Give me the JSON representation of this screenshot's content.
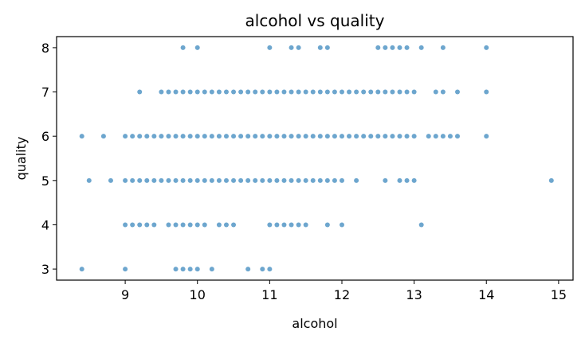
{
  "chart_data": {
    "type": "scatter",
    "title": "alcohol vs quality",
    "xlabel": "alcohol",
    "ylabel": "quality",
    "xlim": [
      8.05,
      15.2
    ],
    "ylim": [
      2.75,
      8.25
    ],
    "xticks": [
      9,
      10,
      11,
      12,
      13,
      14,
      15
    ],
    "yticks": [
      3,
      4,
      5,
      6,
      7,
      8
    ],
    "grid": false,
    "legend": "none",
    "colors": {
      "points": "#1f77b4",
      "frame": "#000000"
    },
    "series": [
      {
        "points": [
          [
            9.8,
            8
          ],
          [
            10.0,
            8
          ],
          [
            11.0,
            8
          ],
          [
            11.3,
            8
          ],
          [
            11.4,
            8
          ],
          [
            11.7,
            8
          ],
          [
            11.8,
            8
          ],
          [
            12.5,
            8
          ],
          [
            12.6,
            8
          ],
          [
            12.7,
            8
          ],
          [
            12.8,
            8
          ],
          [
            12.9,
            8
          ],
          [
            13.1,
            8
          ],
          [
            13.4,
            8
          ],
          [
            14.0,
            8
          ],
          [
            9.2,
            7
          ],
          [
            9.5,
            7
          ],
          [
            9.6,
            7
          ],
          [
            9.7,
            7
          ],
          [
            9.8,
            7
          ],
          [
            9.9,
            7
          ],
          [
            10.0,
            7
          ],
          [
            10.1,
            7
          ],
          [
            10.2,
            7
          ],
          [
            10.3,
            7
          ],
          [
            10.4,
            7
          ],
          [
            10.5,
            7
          ],
          [
            10.6,
            7
          ],
          [
            10.7,
            7
          ],
          [
            10.8,
            7
          ],
          [
            10.9,
            7
          ],
          [
            11.0,
            7
          ],
          [
            11.1,
            7
          ],
          [
            11.2,
            7
          ],
          [
            11.3,
            7
          ],
          [
            11.4,
            7
          ],
          [
            11.5,
            7
          ],
          [
            11.6,
            7
          ],
          [
            11.7,
            7
          ],
          [
            11.8,
            7
          ],
          [
            11.9,
            7
          ],
          [
            12.0,
            7
          ],
          [
            12.1,
            7
          ],
          [
            12.2,
            7
          ],
          [
            12.3,
            7
          ],
          [
            12.4,
            7
          ],
          [
            12.5,
            7
          ],
          [
            12.6,
            7
          ],
          [
            12.7,
            7
          ],
          [
            12.8,
            7
          ],
          [
            12.9,
            7
          ],
          [
            13.0,
            7
          ],
          [
            13.3,
            7
          ],
          [
            13.4,
            7
          ],
          [
            13.6,
            7
          ],
          [
            14.0,
            7
          ],
          [
            8.4,
            6
          ],
          [
            8.7,
            6
          ],
          [
            9.0,
            6
          ],
          [
            9.1,
            6
          ],
          [
            9.2,
            6
          ],
          [
            9.3,
            6
          ],
          [
            9.4,
            6
          ],
          [
            9.5,
            6
          ],
          [
            9.6,
            6
          ],
          [
            9.7,
            6
          ],
          [
            9.8,
            6
          ],
          [
            9.9,
            6
          ],
          [
            10.0,
            6
          ],
          [
            10.1,
            6
          ],
          [
            10.2,
            6
          ],
          [
            10.3,
            6
          ],
          [
            10.4,
            6
          ],
          [
            10.5,
            6
          ],
          [
            10.6,
            6
          ],
          [
            10.7,
            6
          ],
          [
            10.8,
            6
          ],
          [
            10.9,
            6
          ],
          [
            11.0,
            6
          ],
          [
            11.1,
            6
          ],
          [
            11.2,
            6
          ],
          [
            11.3,
            6
          ],
          [
            11.4,
            6
          ],
          [
            11.5,
            6
          ],
          [
            11.6,
            6
          ],
          [
            11.7,
            6
          ],
          [
            11.8,
            6
          ],
          [
            11.9,
            6
          ],
          [
            12.0,
            6
          ],
          [
            12.1,
            6
          ],
          [
            12.2,
            6
          ],
          [
            12.3,
            6
          ],
          [
            12.4,
            6
          ],
          [
            12.5,
            6
          ],
          [
            12.6,
            6
          ],
          [
            12.7,
            6
          ],
          [
            12.8,
            6
          ],
          [
            12.9,
            6
          ],
          [
            13.0,
            6
          ],
          [
            13.2,
            6
          ],
          [
            13.3,
            6
          ],
          [
            13.4,
            6
          ],
          [
            13.5,
            6
          ],
          [
            13.6,
            6
          ],
          [
            14.0,
            6
          ],
          [
            8.5,
            5
          ],
          [
            8.8,
            5
          ],
          [
            9.0,
            5
          ],
          [
            9.1,
            5
          ],
          [
            9.2,
            5
          ],
          [
            9.3,
            5
          ],
          [
            9.4,
            5
          ],
          [
            9.5,
            5
          ],
          [
            9.6,
            5
          ],
          [
            9.7,
            5
          ],
          [
            9.8,
            5
          ],
          [
            9.9,
            5
          ],
          [
            10.0,
            5
          ],
          [
            10.1,
            5
          ],
          [
            10.2,
            5
          ],
          [
            10.3,
            5
          ],
          [
            10.4,
            5
          ],
          [
            10.5,
            5
          ],
          [
            10.6,
            5
          ],
          [
            10.7,
            5
          ],
          [
            10.8,
            5
          ],
          [
            10.9,
            5
          ],
          [
            11.0,
            5
          ],
          [
            11.1,
            5
          ],
          [
            11.2,
            5
          ],
          [
            11.3,
            5
          ],
          [
            11.4,
            5
          ],
          [
            11.5,
            5
          ],
          [
            11.6,
            5
          ],
          [
            11.7,
            5
          ],
          [
            11.8,
            5
          ],
          [
            11.9,
            5
          ],
          [
            12.0,
            5
          ],
          [
            12.2,
            5
          ],
          [
            12.6,
            5
          ],
          [
            12.8,
            5
          ],
          [
            12.9,
            5
          ],
          [
            13.0,
            5
          ],
          [
            14.9,
            5
          ],
          [
            9.0,
            4
          ],
          [
            9.1,
            4
          ],
          [
            9.2,
            4
          ],
          [
            9.3,
            4
          ],
          [
            9.4,
            4
          ],
          [
            9.6,
            4
          ],
          [
            9.7,
            4
          ],
          [
            9.8,
            4
          ],
          [
            9.9,
            4
          ],
          [
            10.0,
            4
          ],
          [
            10.1,
            4
          ],
          [
            10.3,
            4
          ],
          [
            10.4,
            4
          ],
          [
            10.5,
            4
          ],
          [
            11.0,
            4
          ],
          [
            11.1,
            4
          ],
          [
            11.2,
            4
          ],
          [
            11.3,
            4
          ],
          [
            11.4,
            4
          ],
          [
            11.5,
            4
          ],
          [
            11.8,
            4
          ],
          [
            12.0,
            4
          ],
          [
            13.1,
            4
          ],
          [
            8.4,
            3
          ],
          [
            9.0,
            3
          ],
          [
            9.7,
            3
          ],
          [
            9.8,
            3
          ],
          [
            9.9,
            3
          ],
          [
            10.0,
            3
          ],
          [
            10.2,
            3
          ],
          [
            10.7,
            3
          ],
          [
            10.9,
            3
          ],
          [
            11.0,
            3
          ]
        ]
      }
    ]
  }
}
